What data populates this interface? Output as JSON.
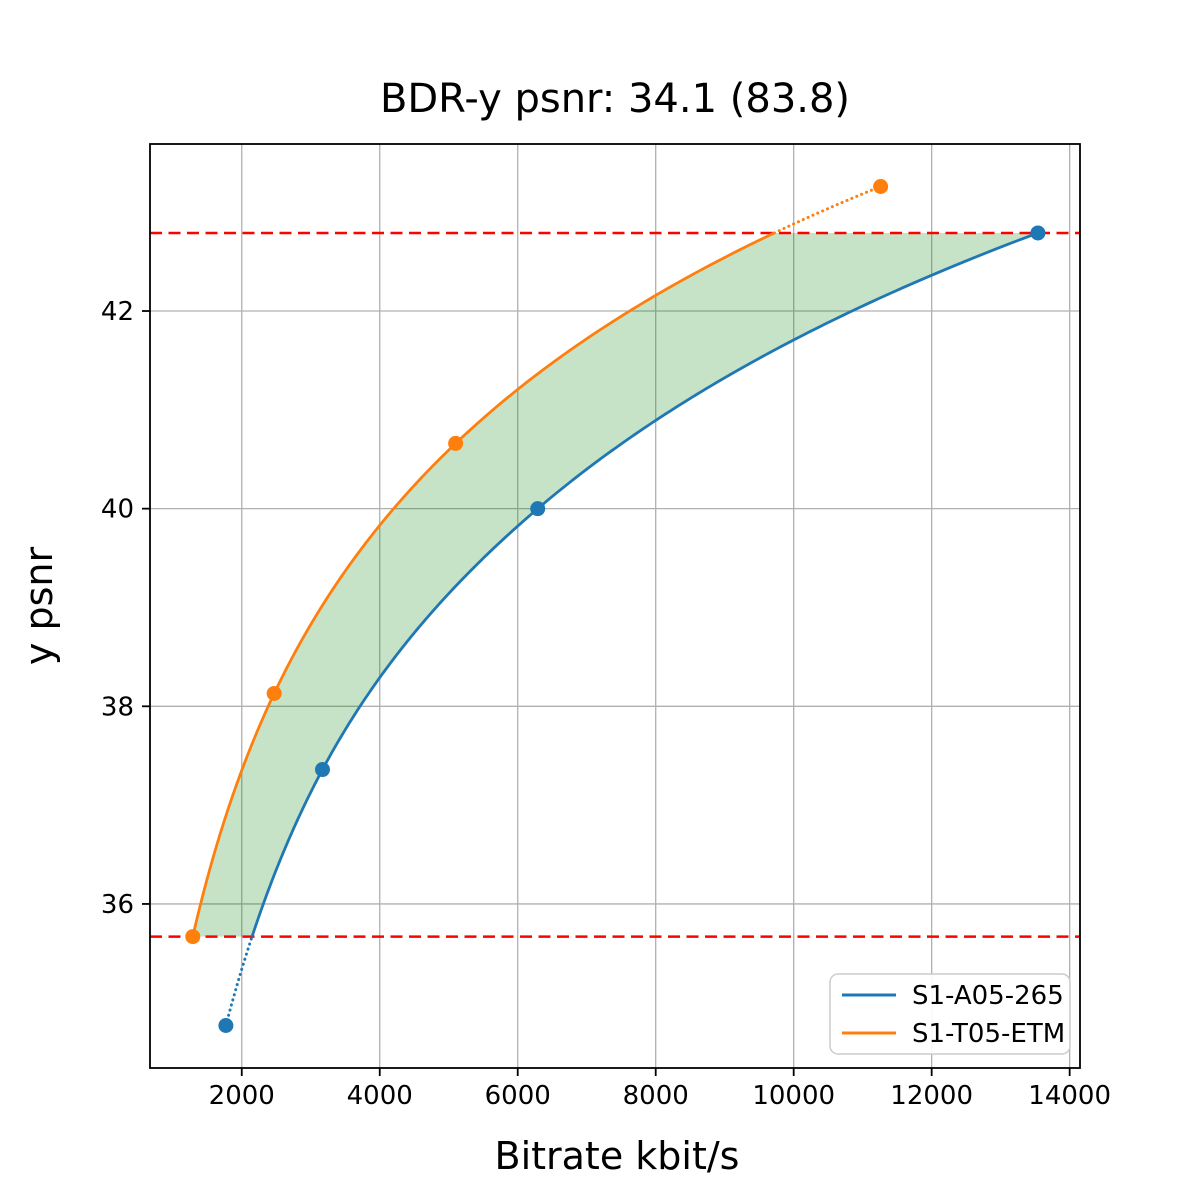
{
  "chart_data": {
    "type": "line",
    "title": "BDR-y psnr: 34.1 (83.8)",
    "xlabel": "Bitrate kbit/s",
    "ylabel": "y psnr",
    "xlim": [
      670,
      14150
    ],
    "ylim": [
      34.34,
      43.69
    ],
    "xticks": [
      2000,
      4000,
      6000,
      8000,
      10000,
      12000,
      14000
    ],
    "yticks": [
      36,
      38,
      40,
      42
    ],
    "grid": true,
    "grid_color": "#b0b0b0",
    "legend_position": "lower right",
    "series": [
      {
        "name": "S1-A05-265",
        "color": "#1f77b4",
        "points": [
          [
            1770,
            34.77
          ],
          [
            3170,
            37.36
          ],
          [
            6290,
            40.0
          ],
          [
            13540,
            42.79
          ]
        ]
      },
      {
        "name": "S1-T05-ETM",
        "color": "#ff7f0e",
        "points": [
          [
            1290,
            35.67
          ],
          [
            2470,
            38.13
          ],
          [
            5100,
            40.66
          ],
          [
            11260,
            43.26
          ]
        ]
      }
    ],
    "overlap_lines": {
      "color": "#ff0000",
      "style": "dashed",
      "y_low": 35.67,
      "y_high": 42.79
    },
    "shaded_region": {
      "color": "#008000",
      "opacity": 0.22,
      "between": [
        "S1-T05-ETM",
        "S1-A05-265"
      ],
      "bounds": [
        35.67,
        42.79
      ]
    }
  }
}
